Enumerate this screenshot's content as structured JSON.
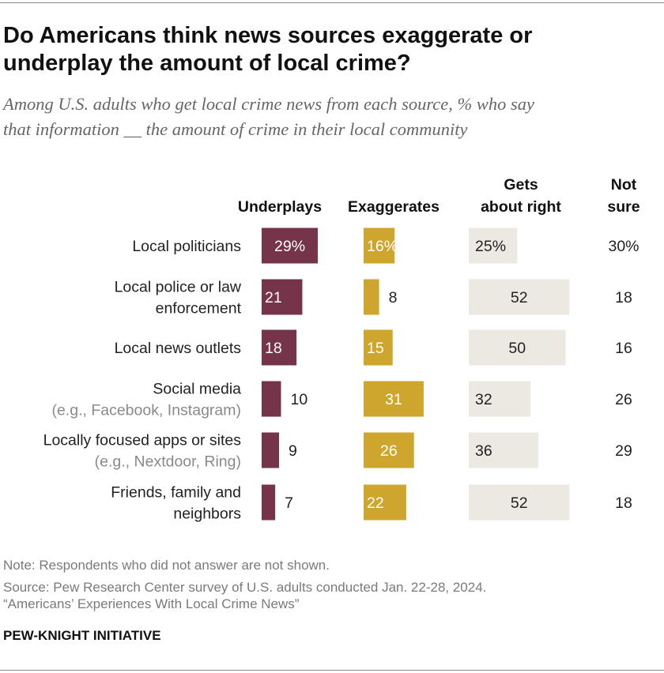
{
  "title": [
    "Do Americans think news sources exaggerate or",
    "underplay the amount of local crime?"
  ],
  "subtitle": [
    "Among U.S. adults who get local crime news from each source, % who say",
    "that information __ the amount of crime in their local community"
  ],
  "note": "Note: Respondents who did not answer are not shown.",
  "source": [
    "Source: Pew Research Center survey of U.S. adults conducted Jan. 22-28, 2024.",
    "“Americans’ Experiences With Local Crime News”"
  ],
  "brand": "PEW-KNIGHT INITIATIVE",
  "colors": {
    "underplays": "#76344a",
    "exaggerates": "#cfa62d",
    "about_right": "#ece9e3",
    "label_main": "#222222",
    "label_sub": "#8a8a8a"
  },
  "chart_data": {
    "type": "bar",
    "orientation": "horizontal",
    "title": "Do Americans think news sources exaggerate or underplay the amount of local crime?",
    "columns": [
      {
        "key": "underplays",
        "header": [
          "Underplays"
        ]
      },
      {
        "key": "exaggerates",
        "header": [
          "Exaggerates"
        ]
      },
      {
        "key": "about_right",
        "header": [
          "Gets",
          "about right"
        ]
      },
      {
        "key": "not_sure",
        "header": [
          "Not",
          "sure"
        ]
      }
    ],
    "categories": [
      {
        "label": [
          "Local politicians"
        ],
        "sub": []
      },
      {
        "label": [
          "Local police or law",
          "enforcement"
        ],
        "sub": []
      },
      {
        "label": [
          "Local news outlets"
        ],
        "sub": []
      },
      {
        "label": [
          "Social media"
        ],
        "sub": [
          "(e.g., Facebook, Instagram)"
        ]
      },
      {
        "label": [
          "Locally focused apps or sites"
        ],
        "sub": [
          "(e.g., Nextdoor, Ring)"
        ]
      },
      {
        "label": [
          "Friends, family and",
          "neighbors"
        ],
        "sub": []
      }
    ],
    "series": [
      {
        "name": "Underplays",
        "values": [
          29,
          21,
          18,
          10,
          9,
          7
        ]
      },
      {
        "name": "Exaggerates",
        "values": [
          16,
          8,
          15,
          31,
          26,
          22
        ]
      },
      {
        "name": "Gets about right",
        "values": [
          25,
          52,
          50,
          32,
          36,
          52
        ]
      },
      {
        "name": "Not sure",
        "values": [
          30,
          18,
          16,
          26,
          29,
          18
        ]
      }
    ],
    "value_labels": [
      [
        "29%",
        "16%",
        "25%",
        "30%"
      ],
      [
        "21",
        "8",
        "52",
        "18"
      ],
      [
        "18",
        "15",
        "50",
        "16"
      ],
      [
        "10",
        "31",
        "32",
        "26"
      ],
      [
        "9",
        "26",
        "36",
        "29"
      ],
      [
        "7",
        "22",
        "52",
        "18"
      ]
    ]
  }
}
